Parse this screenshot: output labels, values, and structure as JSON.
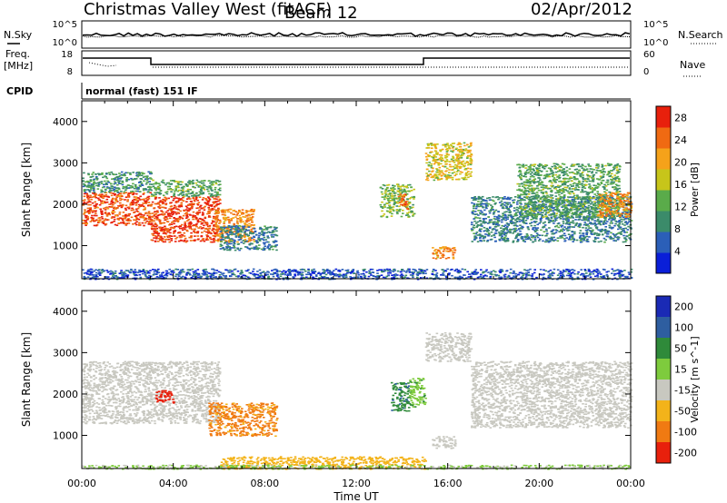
{
  "header": {
    "station": "Christmas Valley West (fitACF)",
    "beam": "Beam 12",
    "date": "02/Apr/2012"
  },
  "panels": {
    "noise": {
      "left_label": "N.Sky",
      "right_label": "N.Search",
      "left_ticks": [
        "10^5",
        "10^0"
      ],
      "right_ticks": [
        "10^5",
        "10^0"
      ]
    },
    "freq": {
      "left_label_1": "Freq.",
      "left_label_2": "[MHz]",
      "right_label": "Nave",
      "left_ticks": [
        "18",
        "8"
      ],
      "right_ticks": [
        "60",
        "0"
      ]
    },
    "cpid": {
      "label": "CPID",
      "mode": "normal (fast) 151 IF"
    }
  },
  "chart_data": [
    {
      "type": "heatmap",
      "title": "Power",
      "xlabel": "Time UT",
      "ylabel": "Slant Range [km]",
      "colorbar_label": "Power [dB]",
      "xlim": [
        0,
        24
      ],
      "ylim": [
        200,
        4500
      ],
      "x_ticks": [
        "00:00",
        "04:00",
        "08:00",
        "12:00",
        "16:00",
        "20:00",
        "00:00"
      ],
      "y_ticks": [
        "1000",
        "2000",
        "3000",
        "4000"
      ],
      "colorbar_ticks": [
        "4",
        "8",
        "12",
        "16",
        "20",
        "24",
        "28"
      ],
      "colorbar_range": [
        0,
        30
      ],
      "regions": [
        {
          "t0": 0.0,
          "t1": 3.0,
          "r0": 1500,
          "r1": 2300,
          "value": 26
        },
        {
          "t0": 0.0,
          "t1": 3.0,
          "r0": 2300,
          "r1": 2800,
          "value": 10
        },
        {
          "t0": 3.0,
          "t1": 6.0,
          "r0": 1100,
          "r1": 2200,
          "value": 27
        },
        {
          "t0": 3.0,
          "t1": 6.0,
          "r0": 2200,
          "r1": 2600,
          "value": 12
        },
        {
          "t0": 5.8,
          "t1": 7.5,
          "r0": 1100,
          "r1": 1900,
          "value": 22
        },
        {
          "t0": 6.0,
          "t1": 8.5,
          "r0": 900,
          "r1": 1500,
          "value": 8
        },
        {
          "t0": 13.0,
          "t1": 14.5,
          "r0": 1700,
          "r1": 2500,
          "value": 14
        },
        {
          "t0": 13.8,
          "t1": 14.2,
          "r0": 1900,
          "r1": 2300,
          "value": 24
        },
        {
          "t0": 15.0,
          "t1": 17.0,
          "r0": 2600,
          "r1": 3500,
          "value": 18
        },
        {
          "t0": 15.3,
          "t1": 16.3,
          "r0": 700,
          "r1": 1000,
          "value": 22
        },
        {
          "t0": 17.0,
          "t1": 24.0,
          "r0": 1100,
          "r1": 2200,
          "value": 8
        },
        {
          "t0": 19.0,
          "t1": 23.5,
          "r0": 1700,
          "r1": 3000,
          "value": 12
        },
        {
          "t0": 22.5,
          "t1": 24.0,
          "r0": 1700,
          "r1": 2300,
          "value": 22
        },
        {
          "t0": 0.0,
          "t1": 24.0,
          "r0": 200,
          "r1": 450,
          "value": 5
        }
      ]
    },
    {
      "type": "heatmap",
      "title": "Velocity",
      "xlabel": "Time UT",
      "ylabel": "Slant Range [km]",
      "colorbar_label": "Velocity [m s^-1]",
      "xlim": [
        0,
        24
      ],
      "ylim": [
        200,
        4500
      ],
      "x_ticks": [
        "00:00",
        "04:00",
        "08:00",
        "12:00",
        "16:00",
        "20:00",
        "00:00"
      ],
      "y_ticks": [
        "1000",
        "2000",
        "3000",
        "4000"
      ],
      "colorbar_ticks": [
        "200",
        "100",
        "50",
        "15",
        "-15",
        "-50",
        "-100",
        "-200"
      ],
      "colorbar_range": [
        -250,
        250
      ],
      "regions": [
        {
          "t0": 0.0,
          "t1": 6.0,
          "r0": 1300,
          "r1": 2800,
          "value": 0
        },
        {
          "t0": 3.2,
          "t1": 4.0,
          "r0": 1800,
          "r1": 2100,
          "value": -200
        },
        {
          "t0": 5.5,
          "t1": 8.5,
          "r0": 1000,
          "r1": 1800,
          "value": -60
        },
        {
          "t0": 13.5,
          "t1": 14.3,
          "r0": 1600,
          "r1": 2300,
          "value": 90
        },
        {
          "t0": 14.3,
          "t1": 15.0,
          "r0": 1700,
          "r1": 2400,
          "value": 40
        },
        {
          "t0": 15.0,
          "t1": 17.0,
          "r0": 2800,
          "r1": 3500,
          "value": 0
        },
        {
          "t0": 15.3,
          "t1": 16.3,
          "r0": 700,
          "r1": 1000,
          "value": 0
        },
        {
          "t0": 17.0,
          "t1": 24.0,
          "r0": 1200,
          "r1": 2800,
          "value": 0
        },
        {
          "t0": 6.0,
          "t1": 15.0,
          "r0": 200,
          "r1": 500,
          "value": -30
        },
        {
          "t0": 0.0,
          "t1": 24.0,
          "r0": 200,
          "r1": 300,
          "value": 20
        }
      ]
    }
  ]
}
